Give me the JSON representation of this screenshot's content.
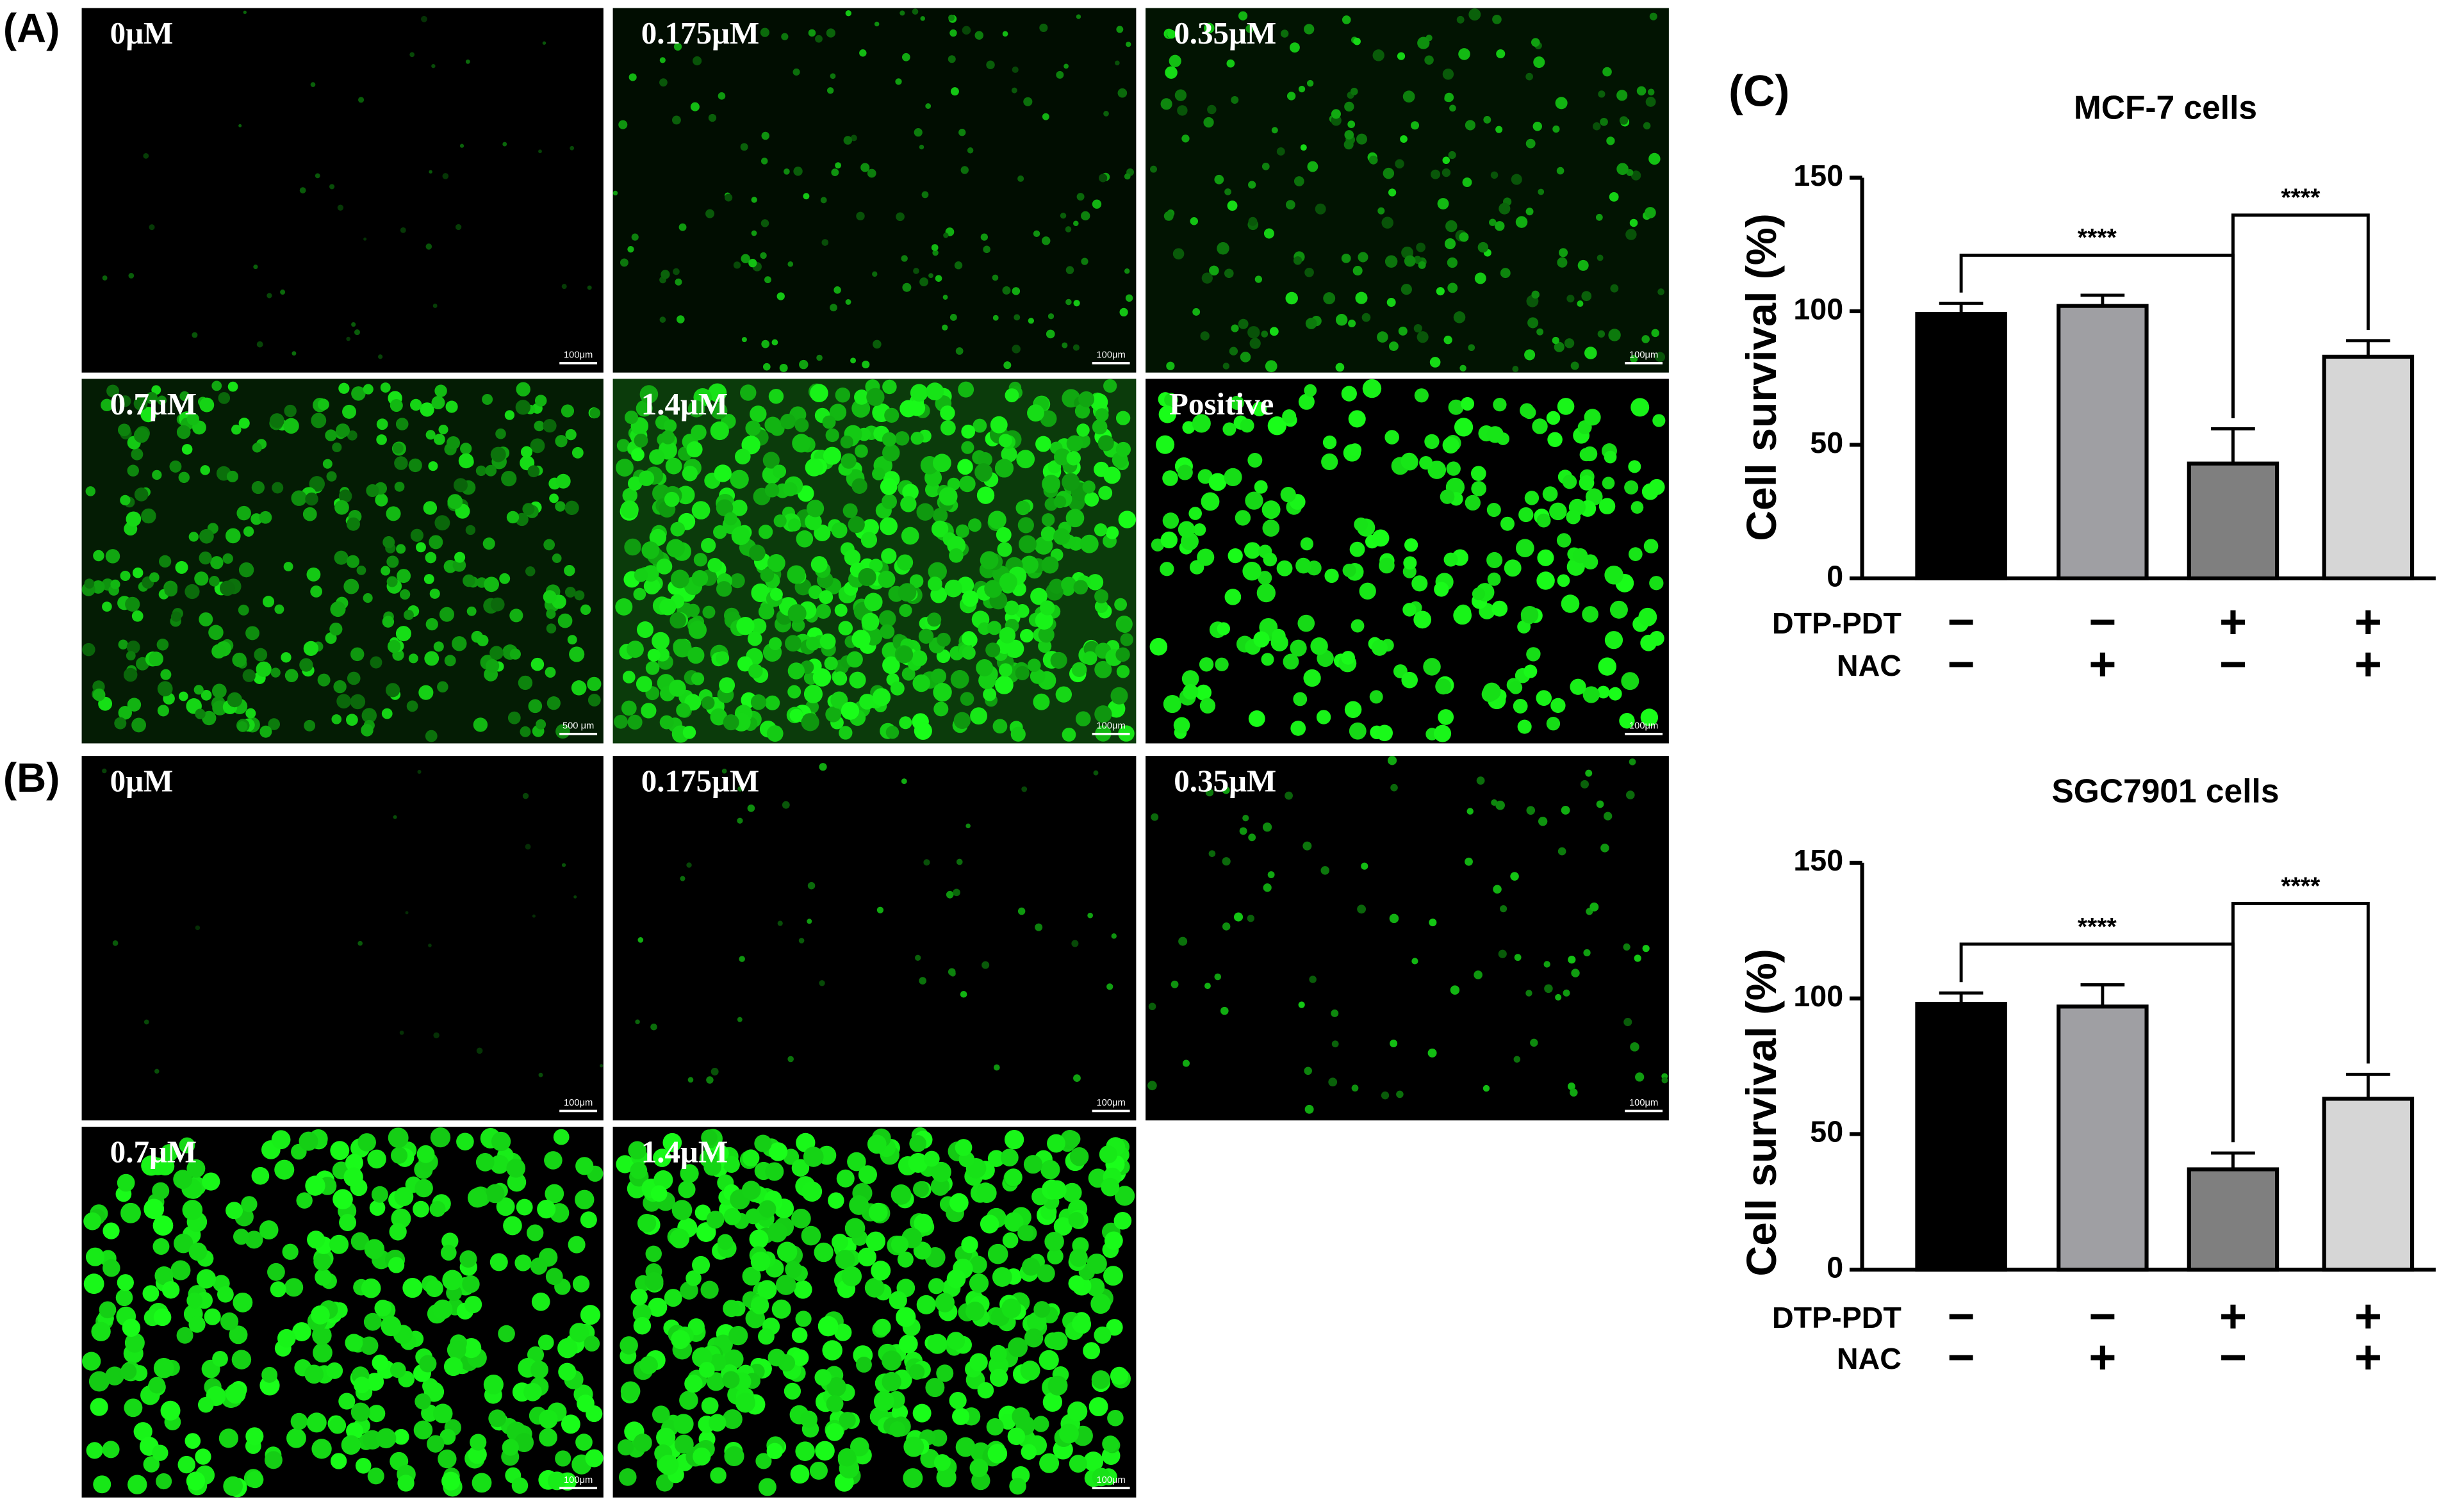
{
  "figure": {
    "label_a": "(A)",
    "label_b": "(B)",
    "label_c": "(C)"
  },
  "panels_a": [
    {
      "label": "0μM",
      "scale_bar": "100μm"
    },
    {
      "label": "0.175μM",
      "scale_bar": "100μm"
    },
    {
      "label": "0.35μM",
      "scale_bar": "100μm"
    },
    {
      "label": "0.7μM",
      "scale_bar": "500 μm"
    },
    {
      "label": "1.4μM",
      "scale_bar": "100μm"
    },
    {
      "label": "Positive",
      "scale_bar": "100μm"
    }
  ],
  "panels_b": [
    {
      "label": "0μM",
      "scale_bar": "100μm"
    },
    {
      "label": "0.175μM",
      "scale_bar": "100μm"
    },
    {
      "label": "0.35μM",
      "scale_bar": "100μm"
    },
    {
      "label": "0.7μM",
      "scale_bar": "100μm"
    },
    {
      "label": "1.4μM",
      "scale_bar": "100μm"
    }
  ],
  "chart_data": [
    {
      "type": "bar",
      "title": "MCF-7  cells",
      "y_label": "Cell survival  (%)",
      "values": [
        99,
        102,
        43,
        83
      ],
      "errors": [
        4,
        4,
        13,
        6
      ],
      "colors": [
        "#000000",
        "#9f9fa3",
        "#7f7f7f",
        "#d6d6d6"
      ],
      "ylim": [
        0,
        150
      ],
      "yticks": [
        0,
        50,
        100,
        150
      ],
      "treatments": [
        {
          "name": "DTP-PDT",
          "signs": [
            "−",
            "−",
            "+",
            "+"
          ]
        },
        {
          "name": "NAC",
          "signs": [
            "−",
            "+",
            "−",
            "+"
          ]
        }
      ],
      "significance": [
        {
          "from": 0,
          "to": 2,
          "label": "****"
        },
        {
          "from": 2,
          "to": 3,
          "label": "****"
        }
      ]
    },
    {
      "type": "bar",
      "title": "SGC7901  cells",
      "y_label": "Cell survival  (%)",
      "values": [
        98,
        97,
        37,
        63
      ],
      "errors": [
        4,
        8,
        6,
        9
      ],
      "colors": [
        "#000000",
        "#9f9fa3",
        "#7f7f7f",
        "#d6d6d6"
      ],
      "ylim": [
        0,
        150
      ],
      "yticks": [
        0,
        50,
        100,
        150
      ],
      "treatments": [
        {
          "name": "DTP-PDT",
          "signs": [
            "−",
            "−",
            "+",
            "+"
          ]
        },
        {
          "name": "NAC",
          "signs": [
            "−",
            "+",
            "−",
            "+"
          ]
        }
      ],
      "significance": [
        {
          "from": 0,
          "to": 2,
          "label": "****"
        },
        {
          "from": 2,
          "to": 3,
          "label": "****"
        }
      ]
    }
  ]
}
